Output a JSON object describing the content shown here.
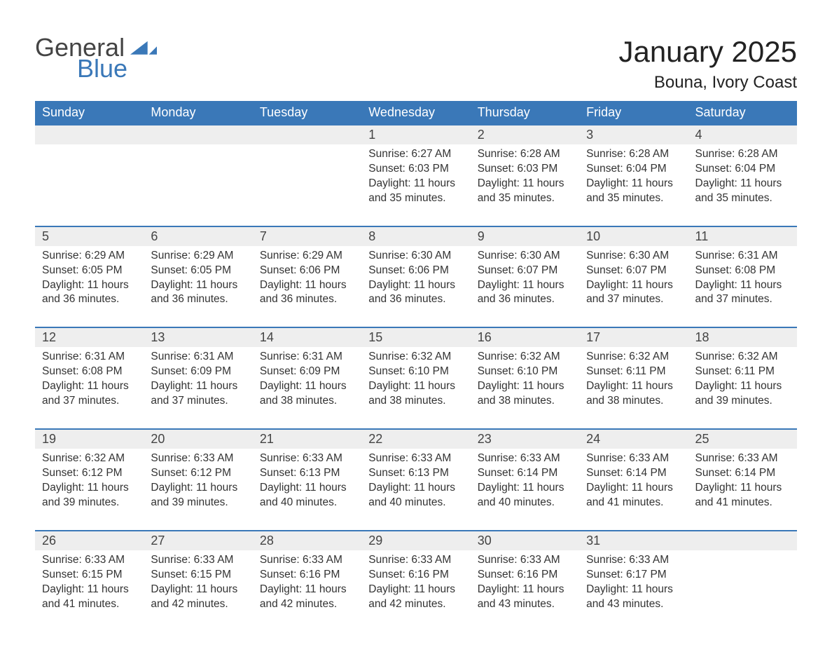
{
  "brand": {
    "general": "General",
    "blue": "Blue",
    "accent_color": "#3a78b8"
  },
  "title": "January 2025",
  "location": "Bouna, Ivory Coast",
  "colors": {
    "header_bg": "#3a78b8",
    "header_text": "#ffffff",
    "daynum_bg": "#eeeeee",
    "row_border": "#3a78b8",
    "body_text": "#333333",
    "page_bg": "#ffffff"
  },
  "typography": {
    "title_fontsize": 42,
    "location_fontsize": 24,
    "header_fontsize": 18,
    "daynum_fontsize": 18,
    "detail_fontsize": 15.5,
    "font_family": "Arial"
  },
  "layout": {
    "columns": 7,
    "rows_of_weeks": 5
  },
  "weekdays": [
    "Sunday",
    "Monday",
    "Tuesday",
    "Wednesday",
    "Thursday",
    "Friday",
    "Saturday"
  ],
  "weeks": [
    [
      null,
      null,
      null,
      {
        "n": "1",
        "sunrise": "Sunrise: 6:27 AM",
        "sunset": "Sunset: 6:03 PM",
        "d1": "Daylight: 11 hours",
        "d2": "and 35 minutes."
      },
      {
        "n": "2",
        "sunrise": "Sunrise: 6:28 AM",
        "sunset": "Sunset: 6:03 PM",
        "d1": "Daylight: 11 hours",
        "d2": "and 35 minutes."
      },
      {
        "n": "3",
        "sunrise": "Sunrise: 6:28 AM",
        "sunset": "Sunset: 6:04 PM",
        "d1": "Daylight: 11 hours",
        "d2": "and 35 minutes."
      },
      {
        "n": "4",
        "sunrise": "Sunrise: 6:28 AM",
        "sunset": "Sunset: 6:04 PM",
        "d1": "Daylight: 11 hours",
        "d2": "and 35 minutes."
      }
    ],
    [
      {
        "n": "5",
        "sunrise": "Sunrise: 6:29 AM",
        "sunset": "Sunset: 6:05 PM",
        "d1": "Daylight: 11 hours",
        "d2": "and 36 minutes."
      },
      {
        "n": "6",
        "sunrise": "Sunrise: 6:29 AM",
        "sunset": "Sunset: 6:05 PM",
        "d1": "Daylight: 11 hours",
        "d2": "and 36 minutes."
      },
      {
        "n": "7",
        "sunrise": "Sunrise: 6:29 AM",
        "sunset": "Sunset: 6:06 PM",
        "d1": "Daylight: 11 hours",
        "d2": "and 36 minutes."
      },
      {
        "n": "8",
        "sunrise": "Sunrise: 6:30 AM",
        "sunset": "Sunset: 6:06 PM",
        "d1": "Daylight: 11 hours",
        "d2": "and 36 minutes."
      },
      {
        "n": "9",
        "sunrise": "Sunrise: 6:30 AM",
        "sunset": "Sunset: 6:07 PM",
        "d1": "Daylight: 11 hours",
        "d2": "and 36 minutes."
      },
      {
        "n": "10",
        "sunrise": "Sunrise: 6:30 AM",
        "sunset": "Sunset: 6:07 PM",
        "d1": "Daylight: 11 hours",
        "d2": "and 37 minutes."
      },
      {
        "n": "11",
        "sunrise": "Sunrise: 6:31 AM",
        "sunset": "Sunset: 6:08 PM",
        "d1": "Daylight: 11 hours",
        "d2": "and 37 minutes."
      }
    ],
    [
      {
        "n": "12",
        "sunrise": "Sunrise: 6:31 AM",
        "sunset": "Sunset: 6:08 PM",
        "d1": "Daylight: 11 hours",
        "d2": "and 37 minutes."
      },
      {
        "n": "13",
        "sunrise": "Sunrise: 6:31 AM",
        "sunset": "Sunset: 6:09 PM",
        "d1": "Daylight: 11 hours",
        "d2": "and 37 minutes."
      },
      {
        "n": "14",
        "sunrise": "Sunrise: 6:31 AM",
        "sunset": "Sunset: 6:09 PM",
        "d1": "Daylight: 11 hours",
        "d2": "and 38 minutes."
      },
      {
        "n": "15",
        "sunrise": "Sunrise: 6:32 AM",
        "sunset": "Sunset: 6:10 PM",
        "d1": "Daylight: 11 hours",
        "d2": "and 38 minutes."
      },
      {
        "n": "16",
        "sunrise": "Sunrise: 6:32 AM",
        "sunset": "Sunset: 6:10 PM",
        "d1": "Daylight: 11 hours",
        "d2": "and 38 minutes."
      },
      {
        "n": "17",
        "sunrise": "Sunrise: 6:32 AM",
        "sunset": "Sunset: 6:11 PM",
        "d1": "Daylight: 11 hours",
        "d2": "and 38 minutes."
      },
      {
        "n": "18",
        "sunrise": "Sunrise: 6:32 AM",
        "sunset": "Sunset: 6:11 PM",
        "d1": "Daylight: 11 hours",
        "d2": "and 39 minutes."
      }
    ],
    [
      {
        "n": "19",
        "sunrise": "Sunrise: 6:32 AM",
        "sunset": "Sunset: 6:12 PM",
        "d1": "Daylight: 11 hours",
        "d2": "and 39 minutes."
      },
      {
        "n": "20",
        "sunrise": "Sunrise: 6:33 AM",
        "sunset": "Sunset: 6:12 PM",
        "d1": "Daylight: 11 hours",
        "d2": "and 39 minutes."
      },
      {
        "n": "21",
        "sunrise": "Sunrise: 6:33 AM",
        "sunset": "Sunset: 6:13 PM",
        "d1": "Daylight: 11 hours",
        "d2": "and 40 minutes."
      },
      {
        "n": "22",
        "sunrise": "Sunrise: 6:33 AM",
        "sunset": "Sunset: 6:13 PM",
        "d1": "Daylight: 11 hours",
        "d2": "and 40 minutes."
      },
      {
        "n": "23",
        "sunrise": "Sunrise: 6:33 AM",
        "sunset": "Sunset: 6:14 PM",
        "d1": "Daylight: 11 hours",
        "d2": "and 40 minutes."
      },
      {
        "n": "24",
        "sunrise": "Sunrise: 6:33 AM",
        "sunset": "Sunset: 6:14 PM",
        "d1": "Daylight: 11 hours",
        "d2": "and 41 minutes."
      },
      {
        "n": "25",
        "sunrise": "Sunrise: 6:33 AM",
        "sunset": "Sunset: 6:14 PM",
        "d1": "Daylight: 11 hours",
        "d2": "and 41 minutes."
      }
    ],
    [
      {
        "n": "26",
        "sunrise": "Sunrise: 6:33 AM",
        "sunset": "Sunset: 6:15 PM",
        "d1": "Daylight: 11 hours",
        "d2": "and 41 minutes."
      },
      {
        "n": "27",
        "sunrise": "Sunrise: 6:33 AM",
        "sunset": "Sunset: 6:15 PM",
        "d1": "Daylight: 11 hours",
        "d2": "and 42 minutes."
      },
      {
        "n": "28",
        "sunrise": "Sunrise: 6:33 AM",
        "sunset": "Sunset: 6:16 PM",
        "d1": "Daylight: 11 hours",
        "d2": "and 42 minutes."
      },
      {
        "n": "29",
        "sunrise": "Sunrise: 6:33 AM",
        "sunset": "Sunset: 6:16 PM",
        "d1": "Daylight: 11 hours",
        "d2": "and 42 minutes."
      },
      {
        "n": "30",
        "sunrise": "Sunrise: 6:33 AM",
        "sunset": "Sunset: 6:16 PM",
        "d1": "Daylight: 11 hours",
        "d2": "and 43 minutes."
      },
      {
        "n": "31",
        "sunrise": "Sunrise: 6:33 AM",
        "sunset": "Sunset: 6:17 PM",
        "d1": "Daylight: 11 hours",
        "d2": "and 43 minutes."
      },
      null
    ]
  ]
}
